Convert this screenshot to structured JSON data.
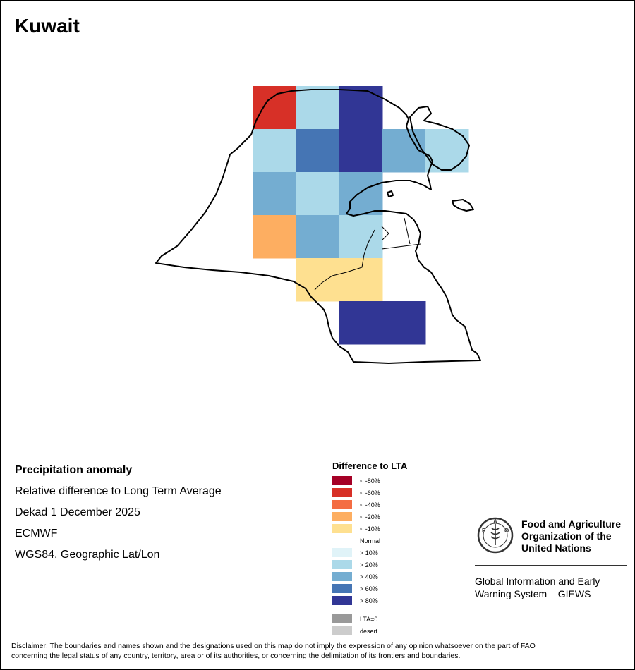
{
  "title": "Kuwait",
  "info": {
    "heading": "Precipitation anomaly",
    "line1": "Relative difference to Long Term Average",
    "line2": "Dekad 1 December 2025",
    "line3": "ECMWF",
    "line4": "WGS84, Geographic Lat/Lon"
  },
  "legend": {
    "title": "Difference to LTA",
    "items": [
      {
        "label": "< -80%",
        "color": "#a50026"
      },
      {
        "label": "< -60%",
        "color": "#d73027"
      },
      {
        "label": "< -40%",
        "color": "#f46d43"
      },
      {
        "label": "< -20%",
        "color": "#fdae61"
      },
      {
        "label": "< -10%",
        "color": "#fee090"
      },
      {
        "label": "Normal",
        "color": "#ffffff"
      },
      {
        "label": "> 10%",
        "color": "#e0f3f8"
      },
      {
        "label": "> 20%",
        "color": "#abd9e9"
      },
      {
        "label": "> 40%",
        "color": "#74add1"
      },
      {
        "label": "> 60%",
        "color": "#4575b4"
      },
      {
        "label": "> 80%",
        "color": "#313695"
      }
    ],
    "extra": [
      {
        "label": "LTA=0",
        "color": "#999999"
      },
      {
        "label": "desert",
        "color": "#cccccc"
      }
    ]
  },
  "grid_cells": [
    {
      "row": 0,
      "col": 0,
      "category": "< -60%"
    },
    {
      "row": 0,
      "col": 1,
      "category": "> 20%"
    },
    {
      "row": 0,
      "col": 2,
      "category": "> 80%"
    },
    {
      "row": 1,
      "col": 0,
      "category": "> 20%"
    },
    {
      "row": 1,
      "col": 1,
      "category": "> 60%"
    },
    {
      "row": 1,
      "col": 2,
      "category": "> 80%"
    },
    {
      "row": 1,
      "col": 3,
      "category": "> 40%"
    },
    {
      "row": 1,
      "col": 4,
      "category": "> 20%"
    },
    {
      "row": 2,
      "col": 0,
      "category": "> 40%"
    },
    {
      "row": 2,
      "col": 1,
      "category": "> 20%"
    },
    {
      "row": 2,
      "col": 2,
      "category": "> 40%"
    },
    {
      "row": 3,
      "col": 0,
      "category": "< -20%"
    },
    {
      "row": 3,
      "col": 1,
      "category": "> 40%"
    },
    {
      "row": 3,
      "col": 2,
      "category": "> 20%"
    },
    {
      "row": 4,
      "col": 1,
      "category": "< -10%"
    },
    {
      "row": 4,
      "col": 2,
      "category": "< -10%"
    },
    {
      "row": 5,
      "col": 2,
      "category": "> 80%"
    },
    {
      "row": 5,
      "col": 3,
      "category": "> 80%"
    }
  ],
  "fao": {
    "org_line1": "Food and Agriculture",
    "org_line2": "Organization of the",
    "org_line3": "United Nations",
    "giews_line1": "Global Information and Early",
    "giews_line2": "Warning System – GIEWS",
    "logo_text": "FAO FIAT PANIS"
  },
  "disclaimer": {
    "line1": "Disclaimer: The boundaries and names shown and the designations used on this map do not imply the expression of any opinion whatsoever on the part of FAO",
    "line2": "concerning the legal status of any country, territory, area or of its authorities, or concerning the delimitation of its frontiers and boundaries."
  }
}
